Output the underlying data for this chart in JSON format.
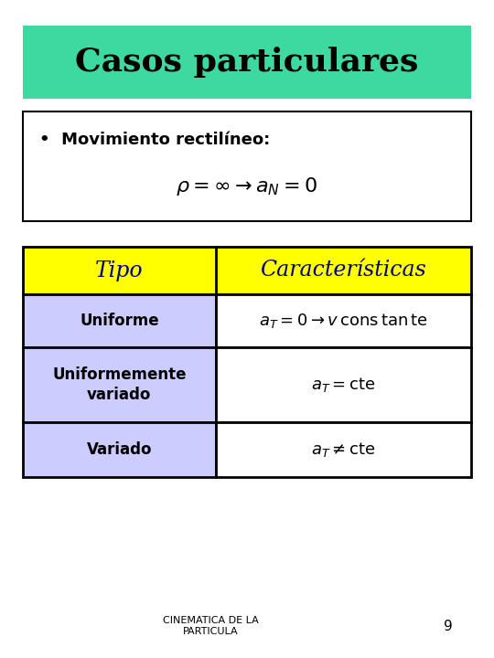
{
  "title": "Casos particulares",
  "title_bg": "#3DD9A0",
  "title_color": "#000000",
  "slide_bg": "#FFFFFF",
  "bullet_text": "Movimiento rectilíneo:",
  "formula_rho": "$\\rho = \\infty \\rightarrow a_N = 0$",
  "table": {
    "header": [
      "Tipo",
      "Características"
    ],
    "header_bg": "#FFFF00",
    "header_color": "#000080",
    "row_bg_left": "#CCCCFF",
    "row_bg_right": "#FFFFFF",
    "rows": [
      {
        "tipo": "Uniforme",
        "caracteristicas": "$a_T = 0 \\rightarrow v\\,\\mathrm{cons\\,tan\\,te}$"
      },
      {
        "tipo": "Uniformemente\nvariado",
        "caracteristicas": "$a_T = \\mathrm{cte}$"
      },
      {
        "tipo": "Variado",
        "caracteristicas": "$a_T \\neq \\mathrm{cte}$"
      }
    ]
  },
  "footer_text": "CINEMATICA DE LA\nPARTICULA",
  "page_number": "9"
}
